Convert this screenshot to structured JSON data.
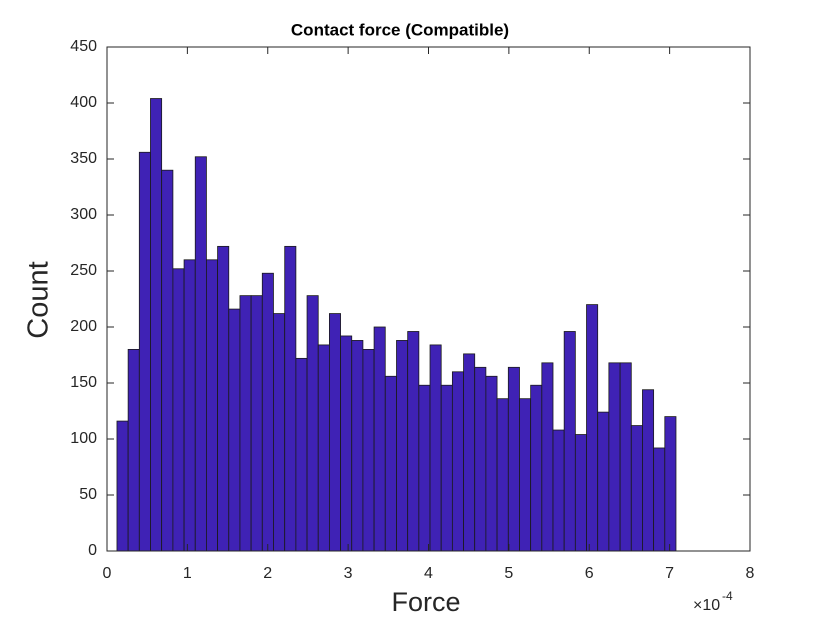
{
  "chart_data": {
    "type": "histogram",
    "title": "Contact force (Compatible)",
    "xlabel": "Force",
    "ylabel": "Count",
    "x_scale_base": "×10",
    "x_scale_exponent": "-4",
    "bins": [
      0.124,
      0.263,
      0.402,
      0.541,
      0.68,
      0.82,
      0.959,
      1.098,
      1.237,
      1.376,
      1.515,
      1.654,
      1.793,
      1.932,
      2.071,
      2.211,
      2.35,
      2.489,
      2.628,
      2.767,
      2.906,
      3.045,
      3.184,
      3.323,
      3.462,
      3.602,
      3.741,
      3.88,
      4.019,
      4.158,
      4.297,
      4.436,
      4.575,
      4.714,
      4.853,
      4.993,
      5.132,
      5.271,
      5.41,
      5.549,
      5.688,
      5.827,
      5.966,
      6.105,
      6.244,
      6.384,
      6.523,
      6.662,
      6.801,
      6.94,
      7.079
    ],
    "values": [
      116,
      180,
      356,
      404,
      340,
      252,
      260,
      352,
      260,
      272,
      216,
      228,
      228,
      248,
      212,
      272,
      172,
      228,
      184,
      212,
      192,
      188,
      180,
      200,
      156,
      188,
      196,
      148,
      184,
      148,
      160,
      176,
      164,
      156,
      136,
      164,
      136,
      148,
      168,
      108,
      196,
      104,
      220,
      124,
      168,
      168,
      112,
      144,
      92,
      120
    ],
    "color": "#3f22b5",
    "edgecolor": "#1a1a1a",
    "xlim": [
      0,
      8
    ],
    "xticks": [
      0,
      1,
      2,
      3,
      4,
      5,
      6,
      7,
      8
    ],
    "ylim": [
      0,
      450
    ],
    "yticks": [
      0,
      50,
      100,
      150,
      200,
      250,
      300,
      350,
      400,
      450
    ]
  }
}
